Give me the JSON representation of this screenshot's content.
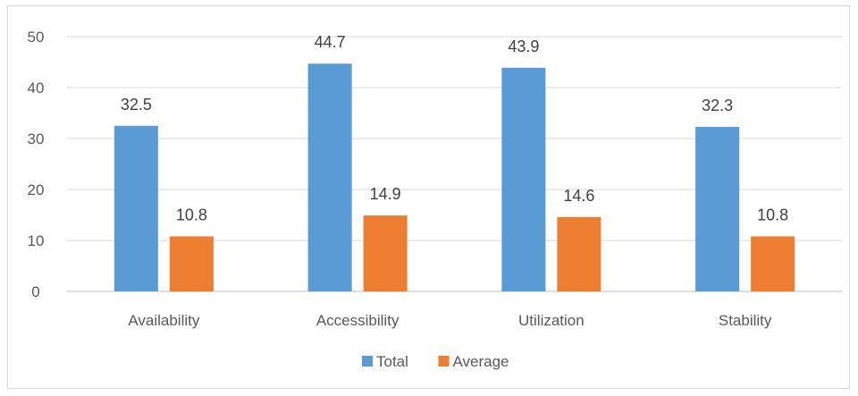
{
  "chart_data": {
    "type": "bar",
    "categories": [
      "Availability",
      "Accessibility",
      "Utilization",
      "Stability"
    ],
    "series": [
      {
        "name": "Total",
        "values": [
          32.5,
          44.7,
          43.9,
          32.3
        ],
        "color": "#5b9bd5"
      },
      {
        "name": "Average",
        "values": [
          10.8,
          14.9,
          14.6,
          10.8
        ],
        "color": "#ed7d31"
      }
    ],
    "yticks": [
      0,
      10,
      20,
      30,
      40,
      50
    ],
    "ylim": [
      0,
      50
    ],
    "grid": true,
    "legend_position": "bottom",
    "data_labels": [
      "32.5",
      "44.7",
      "43.9",
      "32.3",
      "10.8",
      "14.9",
      "14.6",
      "10.8"
    ]
  }
}
